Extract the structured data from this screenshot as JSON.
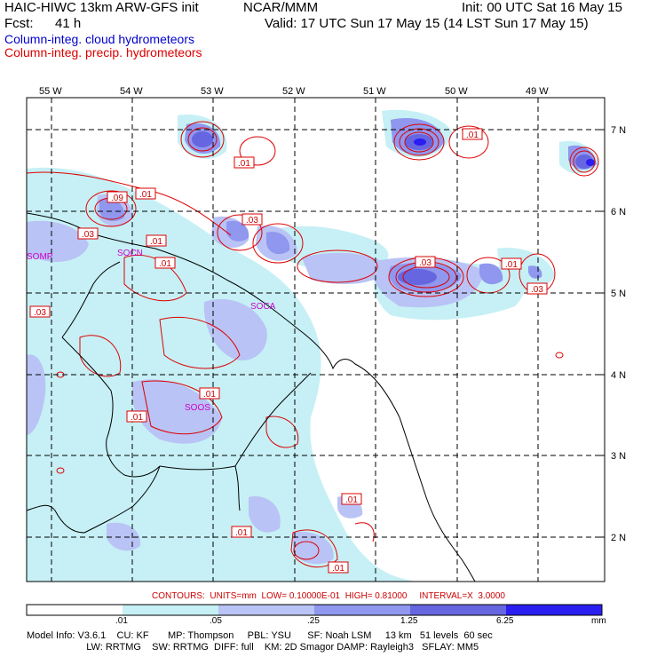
{
  "header": {
    "title": "HAIC-HIWC 13km ARW-GFS init",
    "center": "NCAR/MMM",
    "init": "Init: 00 UTC Sat 16 May 15",
    "fcst_label": "Fcst:",
    "fcst_value": "41 h",
    "valid": "Valid: 17 UTC Sun 17 May 15 (14 LST Sun 17 May 15)",
    "legend_cloud": "Column-integ. cloud hydrometeors",
    "legend_precip": "Column-integ. precip. hydrometeors",
    "colors": {
      "cloud": "#0000cc",
      "precip": "#dd0000"
    }
  },
  "map": {
    "lon_labels": [
      "55 W",
      "54 W",
      "53 W",
      "52 W",
      "51 W",
      "50 W",
      "49 W"
    ],
    "lat_labels": [
      "7 N",
      "6 N",
      "5 N",
      "4 N",
      "3 N",
      "2 N"
    ],
    "stations": [
      "SOMP",
      "SOCN",
      "SOCA",
      "SOOS"
    ],
    "contour_labels": [
      ".01",
      ".09",
      ".01",
      ".03",
      ".03",
      ".01",
      ".01",
      ".03",
      ".03",
      ".01",
      ".03",
      ".01",
      ".01",
      ".01",
      ".01",
      ".01",
      ".01"
    ]
  },
  "contours_line": {
    "label": "CONTOURS:",
    "units": "UNITS=mm",
    "low": "LOW= 0.10000E-01",
    "high": "HIGH= 0.81000",
    "interval": "INTERVAL=X  3.0000"
  },
  "colorbar": {
    "ticks": [
      ".01",
      ".05",
      ".25",
      "1.25",
      "6.25"
    ],
    "unit": "mm",
    "colors": [
      "#ffffff",
      "#c6f0f5",
      "#b9c3f5",
      "#8f97ef",
      "#6666e0",
      "#2a1ff0"
    ]
  },
  "footer": {
    "line1": "Model Info: V3.6.1    CU: KF       MP: Thompson     PBL: YSU      SF: Noah LSM     13 km   51 levels  60 sec",
    "line2": "                      LW: RRTMG    SW: RRTMG  DIFF: full    KM: 2D Smagor DAMP: Rayleigh3   SFLAY: MM5"
  }
}
